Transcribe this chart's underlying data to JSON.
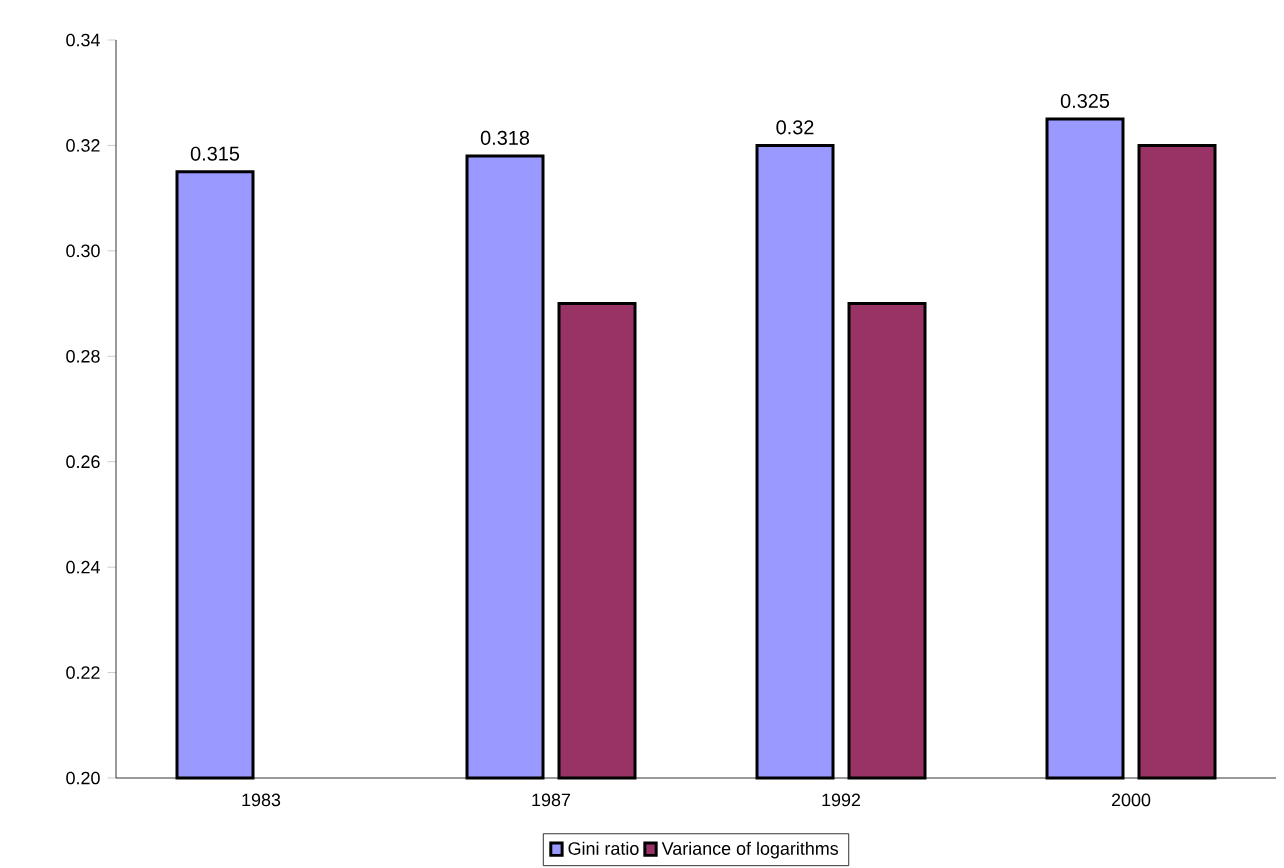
{
  "chart_data": {
    "type": "bar",
    "categories": [
      "1983",
      "1987",
      "1992",
      "2000"
    ],
    "series": [
      {
        "name": "Gini ratio",
        "color": "#9999ff",
        "values": [
          0.315,
          0.318,
          0.32,
          0.325
        ],
        "value_labels": [
          "0.315",
          "0.318",
          "0.32",
          "0.325"
        ]
      },
      {
        "name": "Variance of logarithms",
        "color": "#993366",
        "values": [
          null,
          0.29,
          0.29,
          0.32
        ]
      }
    ],
    "ylim": [
      0.2,
      0.34
    ],
    "yticks": [
      {
        "value": 0.2,
        "label": "0.20"
      },
      {
        "value": 0.22,
        "label": "0.22"
      },
      {
        "value": 0.24,
        "label": "0.24"
      },
      {
        "value": 0.26,
        "label": "0.26"
      },
      {
        "value": 0.28,
        "label": "0.28"
      },
      {
        "value": 0.3,
        "label": "0.30"
      },
      {
        "value": 0.32,
        "label": "0.32"
      },
      {
        "value": 0.34,
        "label": "0.34"
      }
    ],
    "grid": false,
    "legend": "bottom"
  }
}
